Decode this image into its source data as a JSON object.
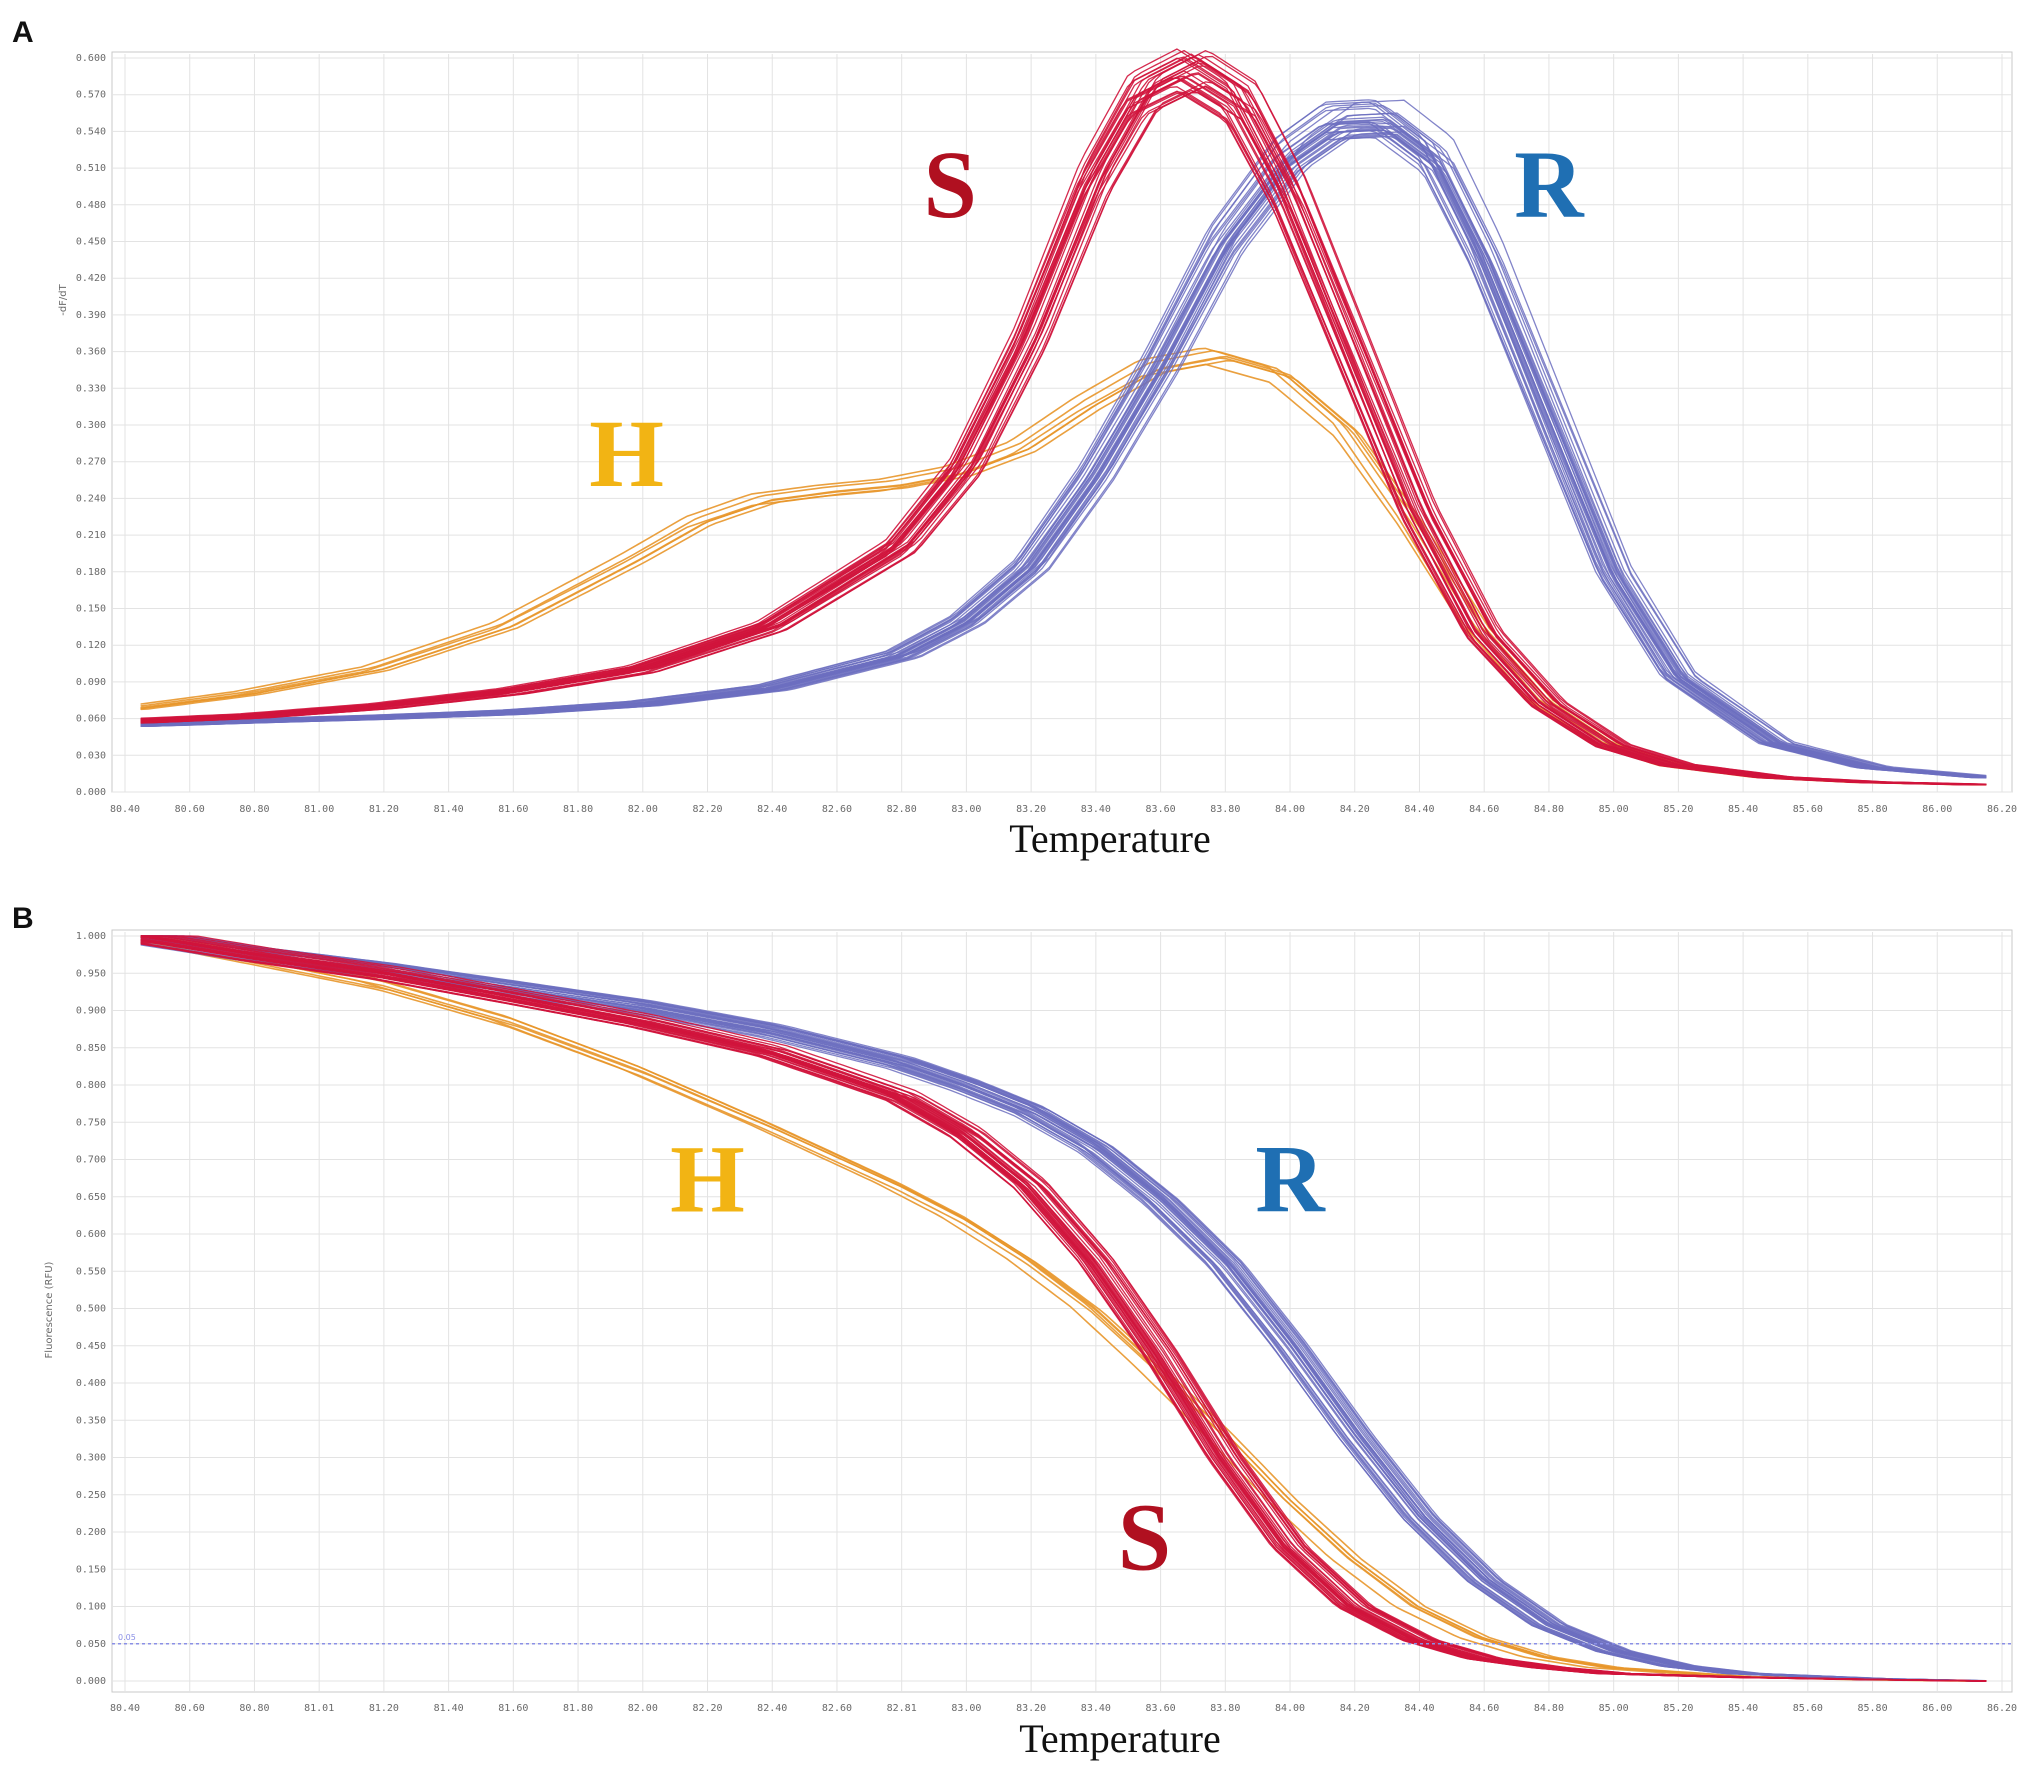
{
  "figure": {
    "panels": [
      {
        "letter": "A"
      },
      {
        "letter": "B"
      }
    ]
  },
  "colors": {
    "S": "#d0143c",
    "R": "#6c6fbf",
    "H": "#e8962a",
    "label_S": "#b01020",
    "label_R": "#1f6fb3",
    "label_H": "#f2b414",
    "threshold": "#8a8fe6"
  },
  "chart_data": [
    {
      "type": "line",
      "panel": "A",
      "title": "",
      "xlabel": "Temperature",
      "ylabel": "-dF/dT",
      "xlim": [
        80.4,
        86.2
      ],
      "ylim": [
        0.0,
        0.6
      ],
      "xticks": [
        "80.40",
        "80.60",
        "80.80",
        "81.00",
        "81.20",
        "81.40",
        "81.60",
        "81.80",
        "82.00",
        "82.20",
        "82.40",
        "82.60",
        "82.80",
        "83.00",
        "83.20",
        "83.40",
        "83.60",
        "83.80",
        "84.00",
        "84.20",
        "84.40",
        "84.60",
        "84.80",
        "85.00",
        "85.20",
        "85.40",
        "85.60",
        "85.80",
        "86.00",
        "86.20"
      ],
      "yticks": [
        "0.000",
        "0.030",
        "0.060",
        "0.090",
        "0.120",
        "0.150",
        "0.180",
        "0.210",
        "0.240",
        "0.270",
        "0.300",
        "0.330",
        "0.360",
        "0.390",
        "0.420",
        "0.450",
        "0.480",
        "0.510",
        "0.540",
        "0.570",
        "0.600"
      ],
      "ytick_values": [
        0.0,
        0.03,
        0.06,
        0.09,
        0.12,
        0.15,
        0.18,
        0.21,
        0.24,
        0.27,
        0.3,
        0.33,
        0.36,
        0.39,
        0.42,
        0.45,
        0.48,
        0.51,
        0.54,
        0.57,
        0.6
      ],
      "group_labels": [
        {
          "text": "S",
          "series": "S",
          "x": 82.95,
          "y": 0.47
        },
        {
          "text": "R",
          "series": "R",
          "x": 84.8,
          "y": 0.47
        },
        {
          "text": "H",
          "series": "H",
          "x": 81.95,
          "y": 0.25
        }
      ],
      "series": [
        {
          "name": "S",
          "replicates": 30,
          "x": [
            80.45,
            80.8,
            81.2,
            81.6,
            82.0,
            82.4,
            82.8,
            83.0,
            83.2,
            83.4,
            83.55,
            83.7,
            83.85,
            84.0,
            84.2,
            84.4,
            84.6,
            84.8,
            85.0,
            85.2,
            85.5,
            85.8,
            86.15
          ],
          "y": [
            0.058,
            0.062,
            0.07,
            0.082,
            0.1,
            0.135,
            0.2,
            0.265,
            0.37,
            0.5,
            0.57,
            0.59,
            0.565,
            0.49,
            0.36,
            0.23,
            0.13,
            0.072,
            0.038,
            0.022,
            0.012,
            0.008,
            0.006
          ]
        },
        {
          "name": "R",
          "replicates": 30,
          "x": [
            80.45,
            80.8,
            81.2,
            81.6,
            82.0,
            82.4,
            82.8,
            83.0,
            83.2,
            83.4,
            83.6,
            83.8,
            84.0,
            84.15,
            84.3,
            84.45,
            84.6,
            84.8,
            85.0,
            85.2,
            85.5,
            85.8,
            86.15
          ],
          "y": [
            0.055,
            0.058,
            0.061,
            0.065,
            0.072,
            0.085,
            0.112,
            0.14,
            0.185,
            0.26,
            0.35,
            0.45,
            0.52,
            0.548,
            0.55,
            0.52,
            0.44,
            0.31,
            0.18,
            0.095,
            0.04,
            0.02,
            0.012
          ]
        },
        {
          "name": "H",
          "replicates": 6,
          "x": [
            80.45,
            80.8,
            81.2,
            81.6,
            82.0,
            82.2,
            82.4,
            82.6,
            82.8,
            83.0,
            83.2,
            83.4,
            83.6,
            83.8,
            84.0,
            84.2,
            84.4,
            84.6,
            84.8,
            85.0,
            85.2,
            85.5,
            85.8,
            86.15
          ],
          "y": [
            0.068,
            0.08,
            0.1,
            0.135,
            0.19,
            0.22,
            0.238,
            0.245,
            0.25,
            0.26,
            0.28,
            0.315,
            0.345,
            0.355,
            0.34,
            0.295,
            0.22,
            0.135,
            0.075,
            0.04,
            0.022,
            0.012,
            0.008,
            0.006
          ]
        }
      ]
    },
    {
      "type": "line",
      "panel": "B",
      "title": "",
      "xlabel": "Temperature",
      "ylabel": "Fluorescence (RFU)",
      "xlim": [
        80.4,
        86.2
      ],
      "ylim": [
        0.0,
        1.0
      ],
      "xticks": [
        "80.40",
        "80.60",
        "80.80",
        "81.01",
        "81.20",
        "81.40",
        "81.60",
        "81.80",
        "82.00",
        "82.20",
        "82.40",
        "82.60",
        "82.81",
        "83.00",
        "83.20",
        "83.40",
        "83.60",
        "83.80",
        "84.00",
        "84.20",
        "84.40",
        "84.60",
        "84.80",
        "85.00",
        "85.20",
        "85.40",
        "85.60",
        "85.80",
        "86.00",
        "86.20"
      ],
      "yticks": [
        "0.000",
        "0.050",
        "0.100",
        "0.150",
        "0.200",
        "0.250",
        "0.300",
        "0.350",
        "0.400",
        "0.450",
        "0.500",
        "0.550",
        "0.600",
        "0.650",
        "0.700",
        "0.750",
        "0.800",
        "0.850",
        "0.900",
        "0.950",
        "1.000"
      ],
      "ytick_values": [
        0.0,
        0.05,
        0.1,
        0.15,
        0.2,
        0.25,
        0.3,
        0.35,
        0.4,
        0.45,
        0.5,
        0.55,
        0.6,
        0.65,
        0.7,
        0.75,
        0.8,
        0.85,
        0.9,
        0.95,
        1.0
      ],
      "threshold": {
        "value": 0.05,
        "label": "0.05"
      },
      "group_labels": [
        {
          "text": "H",
          "series": "H",
          "x": 82.2,
          "y": 0.63
        },
        {
          "text": "R",
          "series": "R",
          "x": 84.0,
          "y": 0.63
        },
        {
          "text": "S",
          "series": "S",
          "x": 83.55,
          "y": 0.15
        }
      ],
      "series": [
        {
          "name": "S",
          "replicates": 30,
          "x": [
            80.45,
            80.8,
            81.2,
            81.6,
            82.0,
            82.4,
            82.8,
            83.0,
            83.2,
            83.4,
            83.6,
            83.8,
            84.0,
            84.2,
            84.4,
            84.6,
            84.8,
            85.0,
            85.4,
            85.8,
            86.15
          ],
          "y": [
            1.0,
            0.975,
            0.95,
            0.918,
            0.885,
            0.845,
            0.785,
            0.735,
            0.665,
            0.565,
            0.44,
            0.3,
            0.18,
            0.1,
            0.055,
            0.03,
            0.018,
            0.01,
            0.005,
            0.002,
            0.0
          ]
        },
        {
          "name": "R",
          "replicates": 30,
          "x": [
            80.45,
            80.8,
            81.2,
            81.6,
            82.0,
            82.4,
            82.8,
            83.0,
            83.2,
            83.4,
            83.6,
            83.8,
            84.0,
            84.2,
            84.4,
            84.6,
            84.8,
            85.0,
            85.2,
            85.4,
            85.8,
            86.15
          ],
          "y": [
            1.0,
            0.976,
            0.955,
            0.93,
            0.905,
            0.873,
            0.83,
            0.8,
            0.765,
            0.715,
            0.645,
            0.56,
            0.45,
            0.33,
            0.22,
            0.135,
            0.075,
            0.04,
            0.02,
            0.01,
            0.003,
            0.0
          ]
        },
        {
          "name": "H",
          "replicates": 6,
          "x": [
            80.45,
            80.8,
            81.2,
            81.6,
            82.0,
            82.4,
            82.8,
            83.0,
            83.2,
            83.4,
            83.6,
            83.8,
            84.0,
            84.2,
            84.4,
            84.6,
            84.8,
            85.0,
            85.4,
            85.8,
            86.15
          ],
          "y": [
            1.0,
            0.97,
            0.935,
            0.885,
            0.82,
            0.745,
            0.665,
            0.62,
            0.565,
            0.5,
            0.42,
            0.335,
            0.245,
            0.165,
            0.1,
            0.058,
            0.032,
            0.018,
            0.006,
            0.002,
            0.0
          ]
        }
      ]
    }
  ]
}
